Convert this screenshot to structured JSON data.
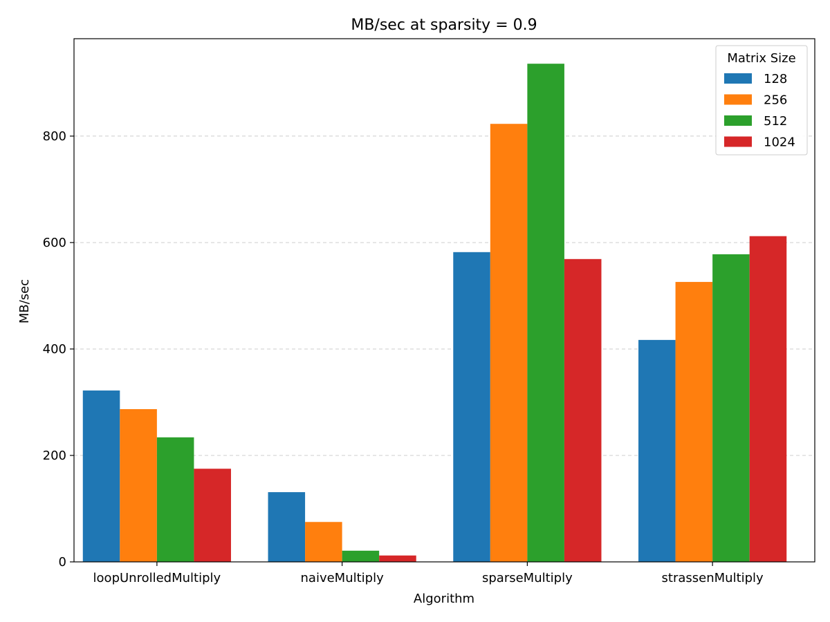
{
  "chart_data": {
    "type": "bar",
    "title": "MB/sec at sparsity = 0.9",
    "xlabel": "Algorithm",
    "ylabel": "MB/sec",
    "categories": [
      "loopUnrolledMultiply",
      "naiveMultiply",
      "sparseMultiply",
      "strassenMultiply"
    ],
    "series": [
      {
        "name": "128",
        "color": "#1f77b4",
        "values": [
          322,
          131,
          582,
          417
        ]
      },
      {
        "name": "256",
        "color": "#ff7f0e",
        "values": [
          287,
          75,
          823,
          526
        ]
      },
      {
        "name": "512",
        "color": "#2ca02c",
        "values": [
          234,
          21,
          936,
          578
        ]
      },
      {
        "name": "1024",
        "color": "#d62728",
        "values": [
          175,
          12,
          569,
          612
        ]
      }
    ],
    "ylim": [
      0,
      983
    ],
    "yticks": [
      0,
      200,
      400,
      600,
      800
    ],
    "grid": "y-dashed",
    "legend": {
      "title": "Matrix Size",
      "position": "top-right"
    }
  }
}
